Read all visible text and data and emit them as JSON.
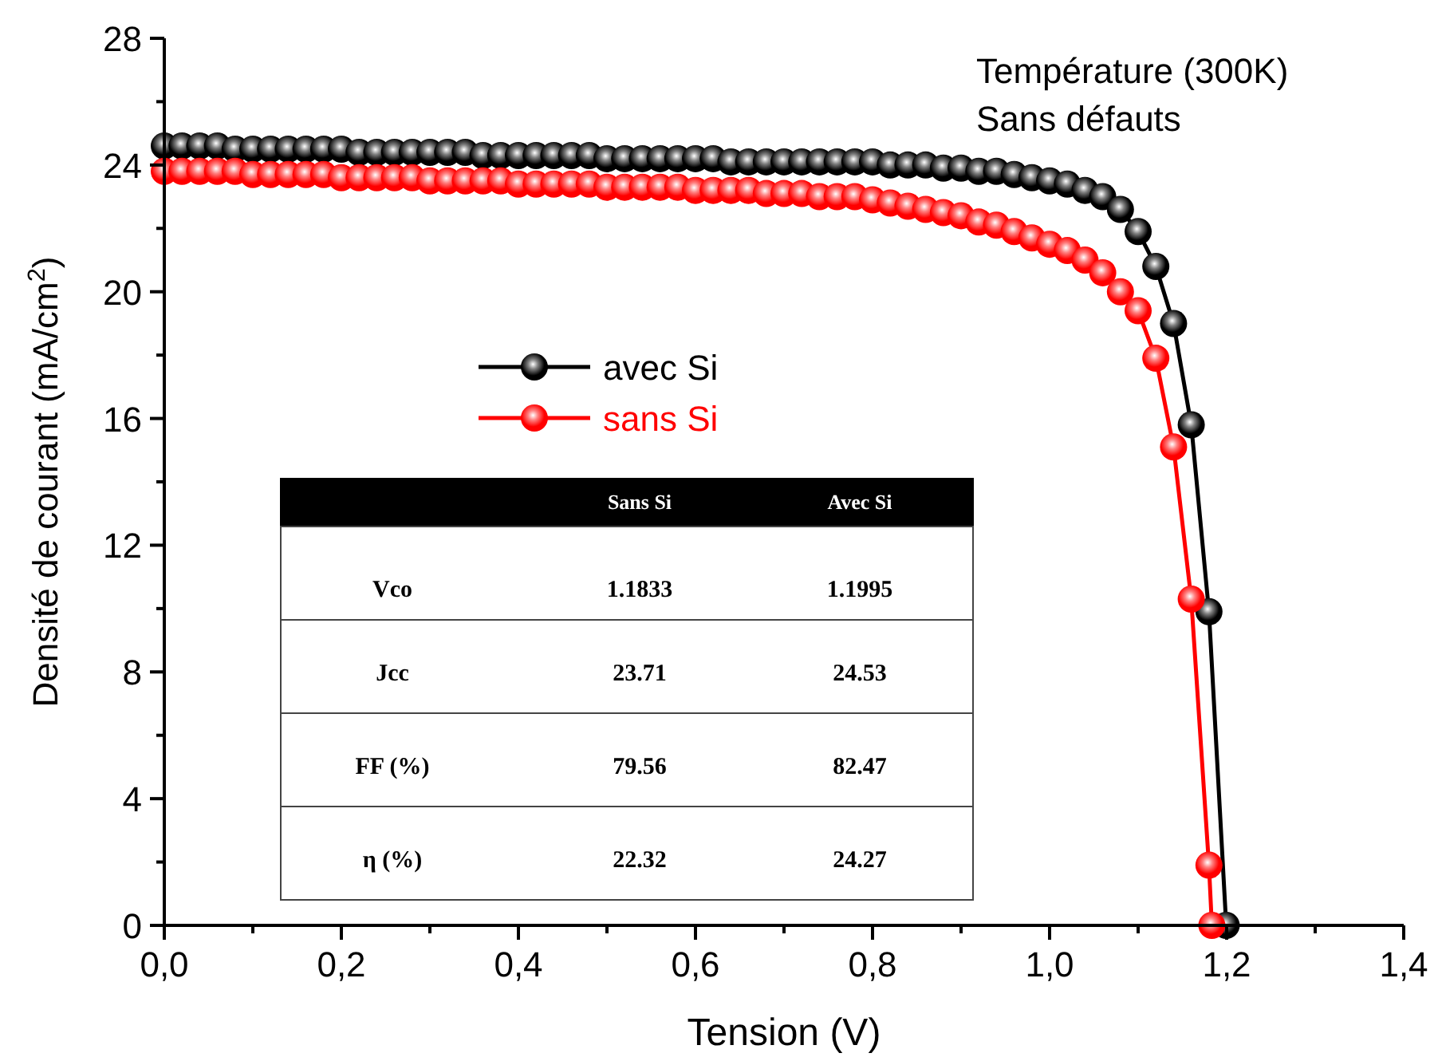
{
  "chart_data": {
    "type": "line",
    "xlabel": "Tension (V)",
    "ylabel": "Densité de courant (mA/cm$^{2}$)",
    "annotations": [
      "Température (300K)",
      "Sans défauts",
      "Sans Si",
      "Avec Si",
      "Vco",
      "1.1833",
      "1.1995",
      "Jcc",
      "23.71",
      "24.53",
      "FF (%)",
      "79.56",
      "82.47",
      "η (%)",
      "22.32",
      "24.27"
    ],
    "xlim": [
      0,
      1.4
    ],
    "ylim": [
      0,
      28
    ],
    "xticks": [
      {
        "value": 0,
        "label": "0,0"
      },
      {
        "value": 0.1,
        "label": null
      },
      {
        "value": 0.2,
        "label": "0,2"
      },
      {
        "value": 0.3,
        "label": null
      },
      {
        "value": 0.4,
        "label": "0,4"
      },
      {
        "value": 0.5,
        "label": null
      },
      {
        "value": 0.6,
        "label": "0,6"
      },
      {
        "value": 0.7,
        "label": null
      },
      {
        "value": 0.8,
        "label": "0,8"
      },
      {
        "value": 0.9,
        "label": null
      },
      {
        "value": 1.0,
        "label": "1,0"
      },
      {
        "value": 1.1,
        "label": null
      },
      {
        "value": 1.2,
        "label": "1,2"
      },
      {
        "value": 1.3,
        "label": null
      },
      {
        "value": 1.4,
        "label": "1,4"
      }
    ],
    "yticks": [
      0,
      {
        "value": 2,
        "label": null
      },
      4,
      {
        "value": 6,
        "label": null
      },
      8,
      {
        "value": 10,
        "label": null
      },
      12,
      {
        "value": 14,
        "label": null
      },
      16,
      {
        "value": 18,
        "label": null
      },
      20,
      {
        "value": 22,
        "label": null
      },
      24,
      {
        "value": 26,
        "label": null
      },
      28
    ],
    "legend": "center",
    "marker": "circle",
    "line_style": "solid",
    "grid": false,
    "series": [
      {
        "name": "avec Si",
        "color": "#000000",
        "x": [
          0,
          0.02,
          0.04,
          0.06,
          0.08,
          0.1,
          0.12,
          0.14,
          0.16,
          0.18,
          0.2,
          0.22,
          0.24,
          0.26,
          0.28,
          0.3,
          0.32,
          0.34,
          0.36,
          0.38,
          0.4,
          0.42,
          0.44,
          0.46,
          0.48,
          0.5,
          0.52,
          0.54,
          0.56,
          0.58,
          0.6,
          0.62,
          0.64,
          0.66,
          0.68,
          0.7,
          0.72,
          0.74,
          0.76,
          0.78,
          0.8,
          0.82,
          0.84,
          0.86,
          0.88,
          0.9,
          0.92,
          0.94,
          0.96,
          0.98,
          1.0,
          1.02,
          1.04,
          1.06,
          1.08,
          1.1,
          1.12,
          1.14,
          1.16,
          1.18,
          1.1995
        ],
        "values": [
          24.6,
          24.6,
          24.6,
          24.6,
          24.5,
          24.5,
          24.5,
          24.5,
          24.5,
          24.5,
          24.5,
          24.4,
          24.4,
          24.4,
          24.4,
          24.4,
          24.4,
          24.4,
          24.3,
          24.3,
          24.3,
          24.3,
          24.3,
          24.3,
          24.3,
          24.2,
          24.2,
          24.2,
          24.2,
          24.2,
          24.2,
          24.2,
          24.1,
          24.1,
          24.1,
          24.1,
          24.1,
          24.1,
          24.1,
          24.1,
          24.1,
          24.0,
          24.0,
          24.0,
          23.9,
          23.9,
          23.8,
          23.8,
          23.7,
          23.6,
          23.5,
          23.4,
          23.2,
          23.0,
          22.6,
          21.9,
          20.8,
          19.0,
          15.8,
          9.9,
          0
        ]
      },
      {
        "name": "sans Si",
        "color": "#ff0000",
        "x": [
          0,
          0.02,
          0.04,
          0.06,
          0.08,
          0.1,
          0.12,
          0.14,
          0.16,
          0.18,
          0.2,
          0.22,
          0.24,
          0.26,
          0.28,
          0.3,
          0.32,
          0.34,
          0.36,
          0.38,
          0.4,
          0.42,
          0.44,
          0.46,
          0.48,
          0.5,
          0.52,
          0.54,
          0.56,
          0.58,
          0.6,
          0.62,
          0.64,
          0.66,
          0.68,
          0.7,
          0.72,
          0.74,
          0.76,
          0.78,
          0.8,
          0.82,
          0.84,
          0.86,
          0.88,
          0.9,
          0.92,
          0.94,
          0.96,
          0.98,
          1.0,
          1.02,
          1.04,
          1.06,
          1.08,
          1.1,
          1.12,
          1.14,
          1.16,
          1.18,
          1.1833
        ],
        "values": [
          23.8,
          23.8,
          23.8,
          23.8,
          23.8,
          23.7,
          23.7,
          23.7,
          23.7,
          23.7,
          23.6,
          23.6,
          23.6,
          23.6,
          23.6,
          23.5,
          23.5,
          23.5,
          23.5,
          23.5,
          23.4,
          23.4,
          23.4,
          23.4,
          23.4,
          23.3,
          23.3,
          23.3,
          23.3,
          23.3,
          23.2,
          23.2,
          23.2,
          23.2,
          23.1,
          23.1,
          23.1,
          23.0,
          23.0,
          23.0,
          22.9,
          22.8,
          22.7,
          22.6,
          22.5,
          22.4,
          22.2,
          22.1,
          21.9,
          21.7,
          21.5,
          21.3,
          21.0,
          20.6,
          20.0,
          19.4,
          17.9,
          15.1,
          10.3,
          1.9,
          0
        ]
      }
    ]
  }
}
